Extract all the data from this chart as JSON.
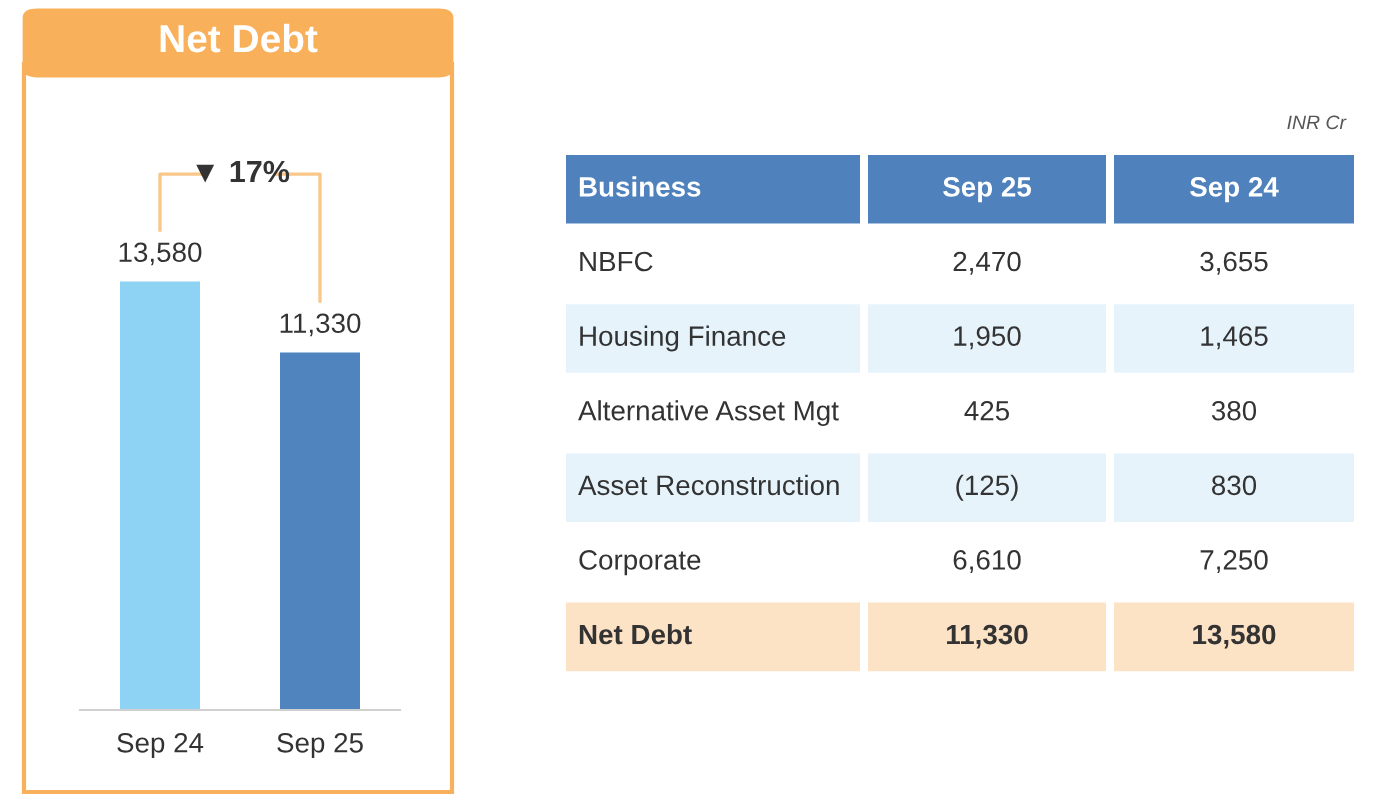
{
  "chart_data": [
    {
      "type": "bar",
      "title": "Net Debt",
      "categories": [
        "Sep 24",
        "Sep 25"
      ],
      "colors": [
        "#8fd3f4",
        "#4f84bf"
      ],
      "values": [
        13580,
        11330
      ],
      "value_labels": [
        "13,580",
        "11,330"
      ],
      "annotations": [
        "▼ 17%"
      ]
    },
    {
      "type": "other",
      "annotations": [
        "INR Cr",
        "Business",
        "Sep 25",
        "Sep 24",
        "NBFC",
        "2,470",
        "3,655",
        "Housing Finance",
        "1,950",
        "1,465",
        "Alternative Asset Mgt",
        "425",
        "380",
        "Asset Reconstruction",
        "(125)",
        "830",
        "Corporate",
        "6,610",
        "7,250",
        "Net Debt",
        "11,330",
        "13,580"
      ]
    }
  ]
}
